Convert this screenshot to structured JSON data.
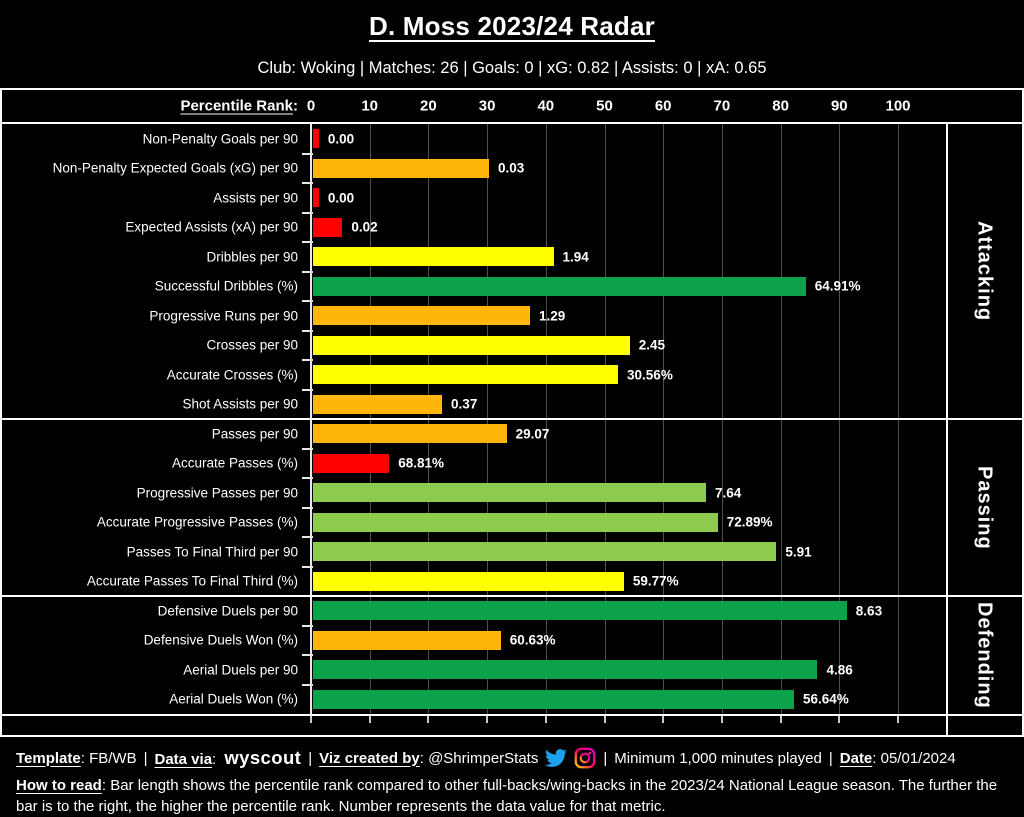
{
  "header": {
    "title": "D. Moss 2023/24 Radar",
    "subtitle": "Club: Woking | Matches: 26 | Goals: 0 | xG: 0.82 | Assists: 0 | xA: 0.65"
  },
  "axis": {
    "label": "Percentile Rank",
    "colon": ":",
    "ticks": [
      "0",
      "10",
      "20",
      "30",
      "40",
      "50",
      "60",
      "70",
      "80",
      "90",
      "100"
    ]
  },
  "colors": {
    "red": "#FF0000",
    "orange": "#FFB60A",
    "yellow": "#FFFF00",
    "green": "#0CA24A",
    "light_green": "#8CCB4E",
    "grid": "#4f4f4f",
    "twitter_blue": "#1DA1F2"
  },
  "chart_data": {
    "type": "bar",
    "orientation": "horizontal",
    "title": "D. Moss 2023/24 Radar",
    "xlabel": "Percentile Rank",
    "xlim": [
      0,
      100
    ],
    "tick_step": 10,
    "grid": true,
    "groups": [
      {
        "name": "Attacking",
        "rows": [
          {
            "label": "Non-Penalty Goals per 90",
            "value": "0.00",
            "percentile": 1,
            "color": "red"
          },
          {
            "label": "Non-Penalty Expected Goals (xG) per 90",
            "value": "0.03",
            "percentile": 30,
            "color": "orange"
          },
          {
            "label": "Assists per 90",
            "value": "0.00",
            "percentile": 1,
            "color": "red"
          },
          {
            "label": "Expected Assists (xA) per 90",
            "value": "0.02",
            "percentile": 5,
            "color": "red"
          },
          {
            "label": "Dribbles per 90",
            "value": "1.94",
            "percentile": 41,
            "color": "yellow"
          },
          {
            "label": "Successful Dribbles (%)",
            "value": "64.91%",
            "percentile": 84,
            "color": "green"
          },
          {
            "label": "Progressive Runs per 90",
            "value": "1.29",
            "percentile": 37,
            "color": "orange"
          },
          {
            "label": "Crosses per 90",
            "value": "2.45",
            "percentile": 54,
            "color": "yellow"
          },
          {
            "label": "Accurate Crosses (%)",
            "value": "30.56%",
            "percentile": 52,
            "color": "yellow"
          },
          {
            "label": "Shot Assists per 90",
            "value": "0.37",
            "percentile": 22,
            "color": "orange"
          }
        ]
      },
      {
        "name": "Passing",
        "rows": [
          {
            "label": "Passes per 90",
            "value": "29.07",
            "percentile": 33,
            "color": "orange"
          },
          {
            "label": "Accurate Passes (%)",
            "value": "68.81%",
            "percentile": 13,
            "color": "red"
          },
          {
            "label": "Progressive Passes per 90",
            "value": "7.64",
            "percentile": 67,
            "color": "light_green"
          },
          {
            "label": "Accurate Progressive Passes (%)",
            "value": "72.89%",
            "percentile": 69,
            "color": "light_green"
          },
          {
            "label": "Passes To Final Third per 90",
            "value": "5.91",
            "percentile": 79,
            "color": "light_green"
          },
          {
            "label": "Accurate Passes To Final Third (%)",
            "value": "59.77%",
            "percentile": 53,
            "color": "yellow"
          }
        ]
      },
      {
        "name": "Defending",
        "rows": [
          {
            "label": "Defensive Duels per 90",
            "value": "8.63",
            "percentile": 91,
            "color": "green"
          },
          {
            "label": "Defensive Duels Won (%)",
            "value": "60.63%",
            "percentile": 32,
            "color": "orange"
          },
          {
            "label": "Aerial Duels per 90",
            "value": "4.86",
            "percentile": 86,
            "color": "green"
          },
          {
            "label": "Aerial Duels Won (%)",
            "value": "56.64%",
            "percentile": 82,
            "color": "green"
          }
        ]
      }
    ]
  },
  "footer": {
    "template_label": "Template",
    "template_value": "FB/WB",
    "data_via_label": "Data via",
    "data_via_value": "wyscout",
    "viz_label": "Viz created by",
    "viz_value": "@ShrimperStats",
    "minutes_note": "Minimum 1,000 minutes played",
    "date_label": "Date",
    "date_value": "05/01/2024",
    "colon": ": ",
    "separator": "|",
    "how_to_read_label": "How to read",
    "how_to_read_text": "Bar length shows the percentile rank compared to other full-backs/wing-backs in the 2023/24 National League season. The further the bar is to the right, the higher the percentile rank. Number represents the data value for that metric."
  }
}
